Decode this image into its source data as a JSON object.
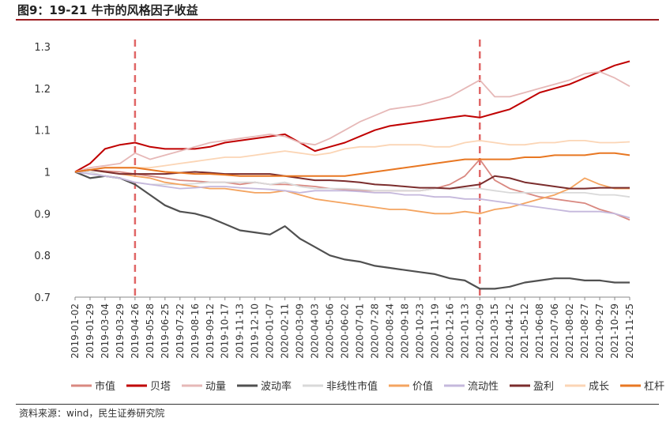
{
  "title": "图9：19-21 牛市的风格因子收益",
  "source": "资料来源：wind，民生证券研究院",
  "chart_data": {
    "type": "line",
    "title": "",
    "xlabel": "",
    "ylabel": "",
    "ylim": [
      0.7,
      1.3
    ],
    "yticks": [
      0.7,
      0.8,
      0.9,
      1,
      1.1,
      1.2,
      1.3
    ],
    "grid": false,
    "legend_position": "bottom",
    "x_tick_labels": [
      "2019-01-02",
      "2019-01-29",
      "2019-03-04",
      "2019-03-29",
      "2019-04-26",
      "2019-05-28",
      "2019-06-25",
      "2019-07-22",
      "2019-08-16",
      "2019-09-12",
      "2019-10-17",
      "2019-11-13",
      "2019-12-10",
      "2020-01-07",
      "2020-02-11",
      "2020-03-09",
      "2020-04-03",
      "2020-05-06",
      "2020-06-02",
      "2020-07-01",
      "2020-07-28",
      "2020-08-24",
      "2020-09-18",
      "2020-10-23",
      "2020-11-19",
      "2020-12-16",
      "2021-01-13",
      "2021-02-09",
      "2021-03-15",
      "2021-04-12",
      "2021-05-12",
      "2021-06-08",
      "2021-07-06",
      "2021-08-02",
      "2021-08-27",
      "2021-09-27",
      "2021-10-29",
      "2021-11-25"
    ],
    "vlines": [
      "2019-04-26",
      "2021-02-09"
    ],
    "series": [
      {
        "name": "市值",
        "color": "#d98880",
        "width": 1.8,
        "values": [
          1.0,
          1.005,
          1.002,
          1.0,
          0.995,
          0.99,
          0.985,
          0.98,
          0.978,
          0.975,
          0.975,
          0.97,
          0.975,
          0.97,
          0.97,
          0.968,
          0.965,
          0.96,
          0.958,
          0.955,
          0.955,
          0.955,
          0.955,
          0.955,
          0.96,
          0.97,
          0.99,
          1.03,
          0.98,
          0.96,
          0.95,
          0.94,
          0.935,
          0.93,
          0.925,
          0.91,
          0.9,
          0.885
        ]
      },
      {
        "name": "贝塔",
        "color": "#c00000",
        "width": 2.0,
        "values": [
          1.0,
          1.02,
          1.055,
          1.065,
          1.07,
          1.06,
          1.055,
          1.055,
          1.055,
          1.06,
          1.07,
          1.075,
          1.08,
          1.085,
          1.09,
          1.07,
          1.05,
          1.06,
          1.07,
          1.085,
          1.1,
          1.11,
          1.115,
          1.12,
          1.125,
          1.13,
          1.135,
          1.13,
          1.14,
          1.15,
          1.17,
          1.19,
          1.2,
          1.21,
          1.225,
          1.24,
          1.255,
          1.265
        ]
      },
      {
        "name": "动量",
        "color": "#e6b8b7",
        "width": 1.8,
        "values": [
          1.0,
          1.01,
          1.015,
          1.02,
          1.045,
          1.03,
          1.04,
          1.05,
          1.06,
          1.07,
          1.075,
          1.08,
          1.085,
          1.09,
          1.085,
          1.07,
          1.065,
          1.08,
          1.1,
          1.12,
          1.135,
          1.15,
          1.155,
          1.16,
          1.17,
          1.18,
          1.2,
          1.22,
          1.18,
          1.18,
          1.19,
          1.2,
          1.21,
          1.22,
          1.235,
          1.24,
          1.225,
          1.205
        ]
      },
      {
        "name": "波动率",
        "color": "#505050",
        "width": 2.2,
        "values": [
          1.0,
          0.985,
          0.99,
          0.985,
          0.97,
          0.945,
          0.92,
          0.905,
          0.9,
          0.89,
          0.875,
          0.86,
          0.855,
          0.85,
          0.87,
          0.84,
          0.82,
          0.8,
          0.79,
          0.785,
          0.775,
          0.77,
          0.765,
          0.76,
          0.755,
          0.745,
          0.74,
          0.72,
          0.72,
          0.725,
          0.735,
          0.74,
          0.745,
          0.745,
          0.74,
          0.74,
          0.735,
          0.735
        ]
      },
      {
        "name": "非线性市值",
        "color": "#d9d9d9",
        "width": 1.8,
        "values": [
          1.0,
          1.0,
          0.99,
          0.985,
          0.975,
          0.97,
          0.97,
          0.97,
          0.972,
          0.975,
          0.975,
          0.975,
          0.975,
          0.97,
          0.975,
          0.965,
          0.96,
          0.96,
          0.96,
          0.958,
          0.955,
          0.955,
          0.955,
          0.955,
          0.96,
          0.96,
          0.96,
          0.96,
          0.955,
          0.95,
          0.95,
          0.95,
          0.95,
          0.95,
          0.95,
          0.945,
          0.945,
          0.94
        ]
      },
      {
        "name": "价值",
        "color": "#f4a460",
        "width": 1.8,
        "values": [
          1.0,
          1.005,
          1.0,
          0.995,
          0.99,
          0.985,
          0.975,
          0.97,
          0.965,
          0.96,
          0.96,
          0.955,
          0.95,
          0.95,
          0.955,
          0.945,
          0.935,
          0.93,
          0.925,
          0.92,
          0.915,
          0.91,
          0.91,
          0.905,
          0.9,
          0.9,
          0.905,
          0.9,
          0.91,
          0.915,
          0.925,
          0.935,
          0.945,
          0.96,
          0.985,
          0.97,
          0.96,
          0.96
        ]
      },
      {
        "name": "流动性",
        "color": "#c5b8dc",
        "width": 1.8,
        "values": [
          1.0,
          0.995,
          0.99,
          0.985,
          0.975,
          0.97,
          0.965,
          0.96,
          0.962,
          0.965,
          0.965,
          0.962,
          0.96,
          0.958,
          0.955,
          0.95,
          0.955,
          0.955,
          0.955,
          0.953,
          0.95,
          0.95,
          0.945,
          0.945,
          0.94,
          0.94,
          0.935,
          0.935,
          0.93,
          0.925,
          0.92,
          0.915,
          0.91,
          0.905,
          0.905,
          0.905,
          0.9,
          0.89
        ]
      },
      {
        "name": "盈利",
        "color": "#7b2d2d",
        "width": 2.0,
        "values": [
          1.0,
          1.005,
          1.0,
          0.995,
          0.995,
          0.995,
          0.995,
          0.998,
          1.0,
          0.998,
          0.995,
          0.995,
          0.995,
          0.995,
          0.99,
          0.985,
          0.98,
          0.98,
          0.978,
          0.975,
          0.97,
          0.968,
          0.965,
          0.962,
          0.962,
          0.96,
          0.965,
          0.97,
          0.99,
          0.985,
          0.975,
          0.97,
          0.965,
          0.96,
          0.96,
          0.962,
          0.962,
          0.962
        ]
      },
      {
        "name": "成长",
        "color": "#fbd5b5",
        "width": 1.8,
        "values": [
          1.0,
          1.005,
          1.01,
          1.01,
          1.01,
          1.01,
          1.015,
          1.02,
          1.025,
          1.03,
          1.035,
          1.035,
          1.04,
          1.045,
          1.05,
          1.045,
          1.04,
          1.045,
          1.055,
          1.06,
          1.06,
          1.065,
          1.065,
          1.065,
          1.06,
          1.06,
          1.07,
          1.075,
          1.07,
          1.065,
          1.065,
          1.07,
          1.07,
          1.075,
          1.075,
          1.07,
          1.07,
          1.072
        ]
      },
      {
        "name": "杠杆",
        "color": "#e87722",
        "width": 2.0,
        "values": [
          1.0,
          1.005,
          1.01,
          1.01,
          1.01,
          1.005,
          1.0,
          0.998,
          0.995,
          0.995,
          0.993,
          0.99,
          0.99,
          0.99,
          0.99,
          0.99,
          0.99,
          0.99,
          0.99,
          0.995,
          1.0,
          1.005,
          1.01,
          1.015,
          1.02,
          1.025,
          1.03,
          1.03,
          1.03,
          1.03,
          1.035,
          1.035,
          1.04,
          1.04,
          1.04,
          1.045,
          1.045,
          1.04
        ]
      }
    ]
  }
}
